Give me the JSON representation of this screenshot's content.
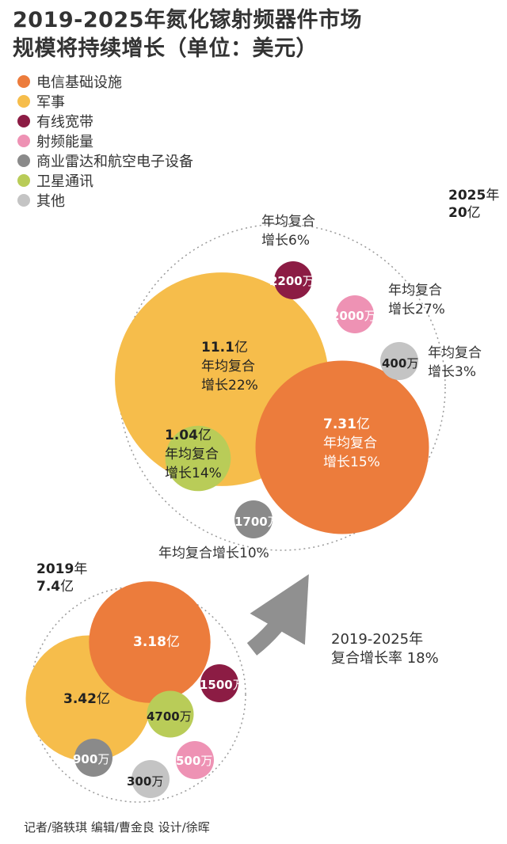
{
  "title_lines": [
    "2019-2025年氮化镓射频器件市场",
    "规模将持续增长（单位：美元）"
  ],
  "legend": [
    {
      "name": "电信基础设施",
      "color": "#ec7c3c"
    },
    {
      "name": "军事",
      "color": "#f6bd4b"
    },
    {
      "name": "有线宽带",
      "color": "#8c1c44"
    },
    {
      "name": "射频能量",
      "color": "#ee92b4"
    },
    {
      "name": "商业雷达和航空电子设备",
      "color": "#8a8a8a"
    },
    {
      "name": "卫星通讯",
      "color": "#b9cc58"
    },
    {
      "name": "其他",
      "color": "#c4c4c4"
    }
  ],
  "chart_data": [
    {
      "type": "bubble",
      "year": "2025",
      "year_suffix": "年",
      "total": "20",
      "total_unit": "亿",
      "bubbles": [
        {
          "segment": "军事",
          "value": 11.1,
          "label": "11.1",
          "unit": "亿",
          "growth": [
            "年均复合",
            "增长22%"
          ]
        },
        {
          "segment": "电信基础设施",
          "value": 7.31,
          "label": "7.31",
          "unit": "亿",
          "growth": [
            "年均复合",
            "增长15%"
          ]
        },
        {
          "segment": "卫星通讯",
          "value": 1.04,
          "label": "1.04",
          "unit": "亿",
          "growth": [
            "年均复合",
            "增长14%"
          ]
        },
        {
          "segment": "有线宽带",
          "value": 0.22,
          "label": "2200",
          "unit": "万",
          "growth": [
            "年均复合",
            "增长6%"
          ]
        },
        {
          "segment": "射频能量",
          "value": 0.2,
          "label": "2000",
          "unit": "万",
          "growth": [
            "年均复合",
            "增长27%"
          ]
        },
        {
          "segment": "其他",
          "value": 0.04,
          "label": "400",
          "unit": "万",
          "growth": [
            "年均复合",
            "增长3%"
          ]
        },
        {
          "segment": "商业雷达和航空电子设备",
          "value": 0.17,
          "label": "1700",
          "unit": "万",
          "growth": [
            "年均复合增长10%"
          ]
        }
      ]
    },
    {
      "type": "bubble",
      "year": "2019",
      "year_suffix": "年",
      "total": "7.4",
      "total_unit": "亿",
      "bubbles": [
        {
          "segment": "军事",
          "value": 3.42,
          "label": "3.42",
          "unit": "亿"
        },
        {
          "segment": "电信基础设施",
          "value": 3.18,
          "label": "3.18",
          "unit": "亿"
        },
        {
          "segment": "卫星通讯",
          "value": 0.47,
          "label": "4700",
          "unit": "万"
        },
        {
          "segment": "有线宽带",
          "value": 0.15,
          "label": "1500",
          "unit": "万"
        },
        {
          "segment": "商业雷达和航空电子设备",
          "value": 0.09,
          "label": "900",
          "unit": "万"
        },
        {
          "segment": "射频能量",
          "value": 0.05,
          "label": "500",
          "unit": "万"
        },
        {
          "segment": "其他",
          "value": 0.03,
          "label": "300",
          "unit": "万"
        }
      ]
    }
  ],
  "cagr_note": [
    "2019-2025年",
    "复合增长率 18%"
  ],
  "credits": "记者/骆轶琪  编辑/曹金良 设计/徐晖"
}
